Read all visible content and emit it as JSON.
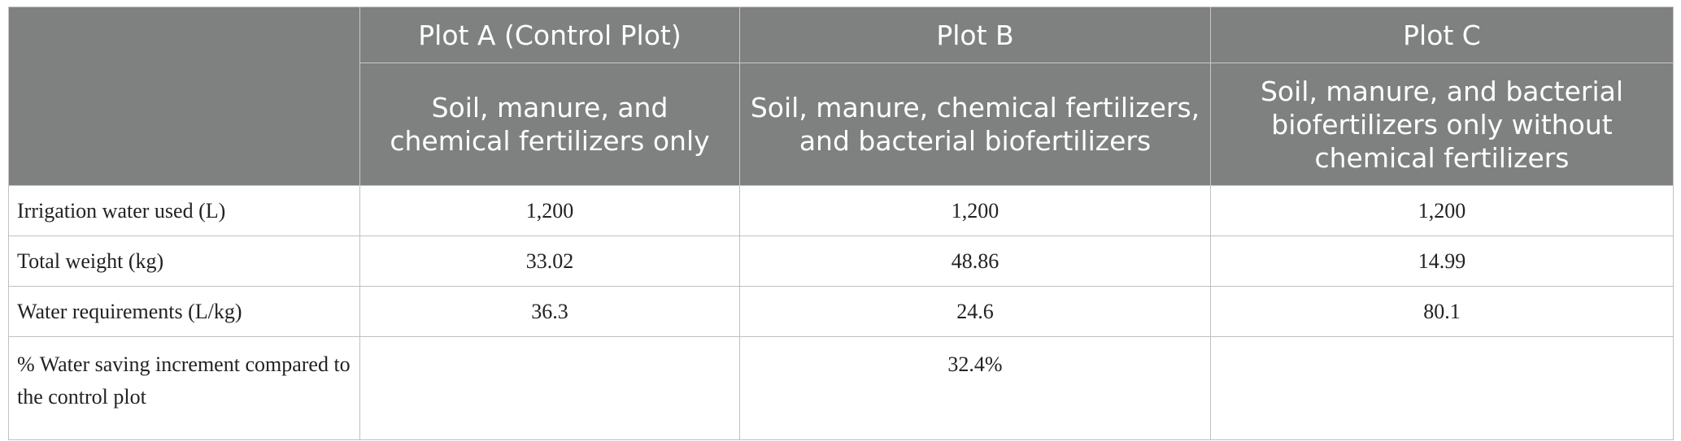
{
  "table": {
    "columns": [
      {
        "title": "Plot A (Control Plot)",
        "description": "Soil, manure, and chemical fertilizers only"
      },
      {
        "title": "Plot B",
        "description": "Soil, manure, chemical fertilizers, and bacterial biofertilizers"
      },
      {
        "title": "Plot C",
        "description": "Soil, manure, and bacterial biofertilizers only without chemical fertilizers"
      }
    ],
    "rows": [
      {
        "label": "Irrigation water used (L)",
        "values": [
          "1,200",
          "1,200",
          "1,200"
        ]
      },
      {
        "label": "Total weight (kg)",
        "values": [
          "33.02",
          "48.86",
          "14.99"
        ]
      },
      {
        "label": "Water requirements (L/kg)",
        "values": [
          "36.3",
          "24.6",
          "80.1"
        ]
      },
      {
        "label": "% Water saving increment compared to the control plot",
        "values": [
          null,
          "32.4%",
          null
        ]
      }
    ]
  }
}
